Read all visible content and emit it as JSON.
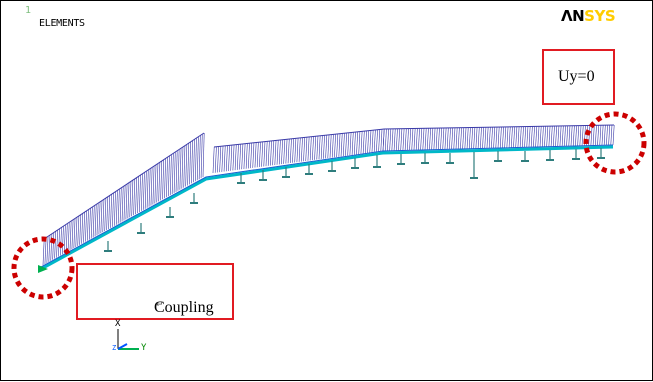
{
  "viewport": {
    "window_number": "1",
    "plot_label": "ELEMENTS"
  },
  "logo": {
    "part1": "ΛN",
    "part2": "SYS"
  },
  "annotations": {
    "boundary_condition": "Uy=0",
    "coupling": "Coupling",
    "return_mark": "↵"
  },
  "triad": {
    "x_label": "X",
    "y_label": "Y",
    "z_label": "Z"
  },
  "colors": {
    "element_mesh": "#3a3aa8",
    "girder": "#00b8c8",
    "support": "#2e7d7d",
    "callout_border": "#e11b22",
    "marker": "#cc0000"
  }
}
